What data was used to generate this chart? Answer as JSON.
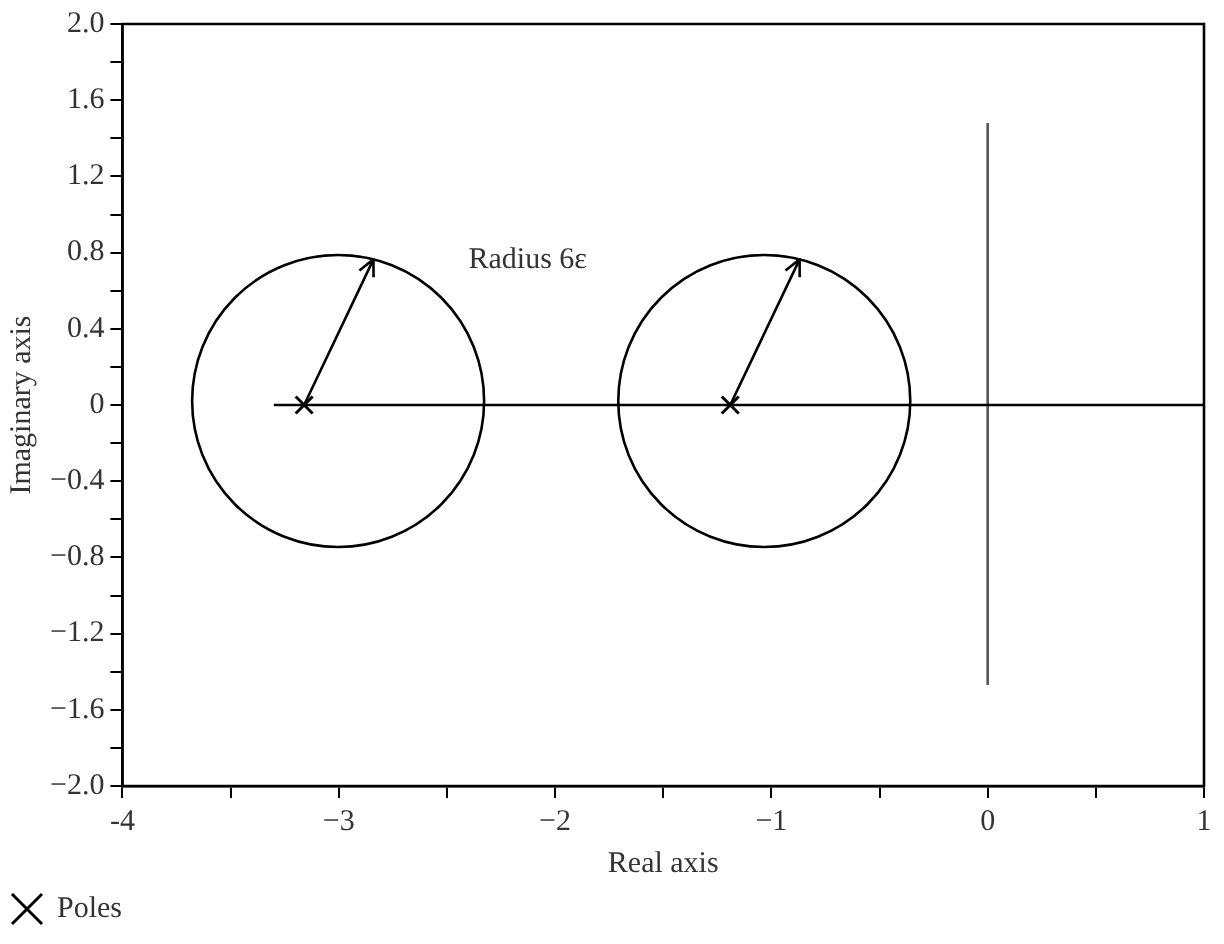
{
  "chart_data": {
    "type": "scatter",
    "xlabel": "Real axis",
    "ylabel": "Imaginary axis",
    "legend": "bottom left",
    "grid": false,
    "marker": "none",
    "line_style": "solid",
    "annotations": [
      "Radius 6ε"
    ],
    "xlim": [
      -4,
      1
    ],
    "xticks": [
      -4,
      {
        "value": -3.5,
        "label": null
      },
      {
        "value": -3,
        "label": "−3"
      },
      {
        "value": -2.5,
        "label": null
      },
      {
        "value": -2,
        "label": "−2"
      },
      {
        "value": -1.5,
        "label": null
      },
      {
        "value": -1,
        "label": "−1"
      },
      {
        "value": -0.5,
        "label": null
      },
      0,
      {
        "value": 0.5,
        "label": null
      },
      1
    ],
    "ylim": [
      -2,
      2
    ],
    "yticks": [
      {
        "value": -2,
        "label": "−2.0"
      },
      {
        "value": -1.8,
        "label": null
      },
      {
        "value": -1.6,
        "label": "−1.6"
      },
      {
        "value": -1.4,
        "label": null
      },
      {
        "value": -1.2,
        "label": "−1.2"
      },
      {
        "value": -1,
        "label": null
      },
      {
        "value": -0.8,
        "label": "−0.8"
      },
      {
        "value": -0.6,
        "label": null
      },
      {
        "value": -0.4,
        "label": "−0.4"
      },
      {
        "value": -0.2,
        "label": null
      },
      0,
      {
        "value": 0.2,
        "label": null
      },
      0.4,
      {
        "value": 0.6,
        "label": null
      },
      0.8,
      {
        "value": 1,
        "label": null
      },
      1.2,
      {
        "value": 1.4,
        "label": null
      },
      1.6,
      {
        "value": 1.8,
        "label": null
      },
      {
        "value": 2,
        "label": "2.0"
      }
    ],
    "series": [
      {
        "type": "line",
        "color": "#000000",
        "x": [
          -3.3,
          1
        ],
        "values": [
          0,
          0
        ]
      },
      {
        "type": "line",
        "color": "#555555",
        "x": [
          0,
          0
        ],
        "values": [
          1.48,
          -1.47
        ]
      },
      {
        "type": "scatter",
        "name": "Poles",
        "color": "#000000",
        "marker": "cross",
        "x": [
          -3.16,
          -1.19
        ],
        "values": [
          0,
          0
        ]
      }
    ]
  }
}
